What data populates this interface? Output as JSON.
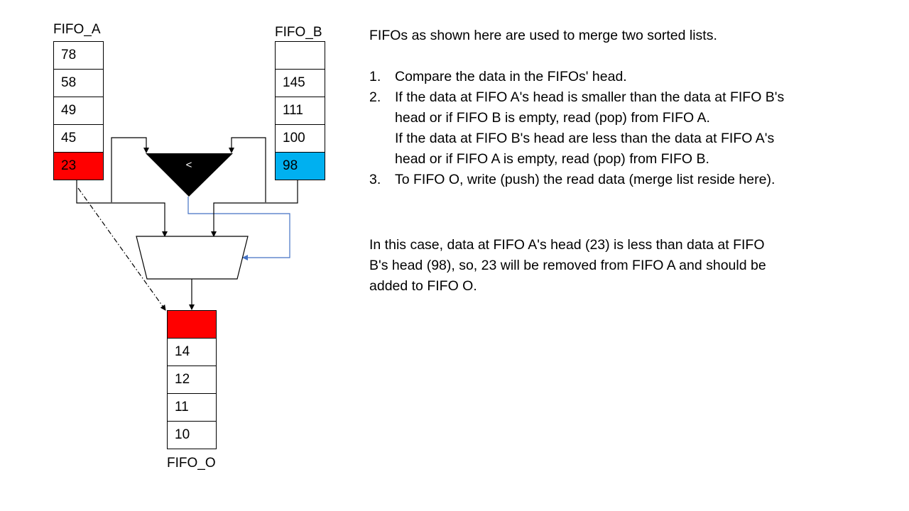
{
  "diagram": {
    "fifo_a": {
      "label": "FIFO_A",
      "cells": [
        "78",
        "58",
        "49",
        "45",
        "23"
      ]
    },
    "fifo_b": {
      "label": "FIFO_B",
      "cells": [
        "",
        "145",
        "111",
        "100",
        "98"
      ]
    },
    "fifo_o": {
      "label": "FIFO_O",
      "cells": [
        "",
        "14",
        "12",
        "11",
        "10"
      ]
    },
    "comparator_symbol": "<",
    "colors": {
      "head_a": "#ff0000",
      "head_b": "#00b0f0",
      "write_slot": "#ff0000",
      "select_line": "#4472c4",
      "outline": "#000000"
    }
  },
  "text": {
    "intro": "FIFOs as shown here are used to merge two sorted lists.",
    "steps": [
      {
        "num": "1.",
        "lines": [
          "Compare the data in the FIFOs' head."
        ]
      },
      {
        "num": "2.",
        "lines": [
          "If the data at FIFO A's head is smaller than the data at FIFO B's",
          "head or if FIFO B is empty, read (pop) from FIFO A.",
          "If the data at FIFO B's head are less than the data at FIFO A's",
          "head or if FIFO A is empty, read (pop) from FIFO B."
        ]
      },
      {
        "num": "3.",
        "lines": [
          "To FIFO O, write (push) the read data (merge list reside here)."
        ]
      }
    ],
    "conclusion": [
      "In this case, data at FIFO A's head (23) is less than data at FIFO",
      "B's head (98), so, 23 will be removed from FIFO A and should be",
      "added to FIFO O."
    ]
  }
}
